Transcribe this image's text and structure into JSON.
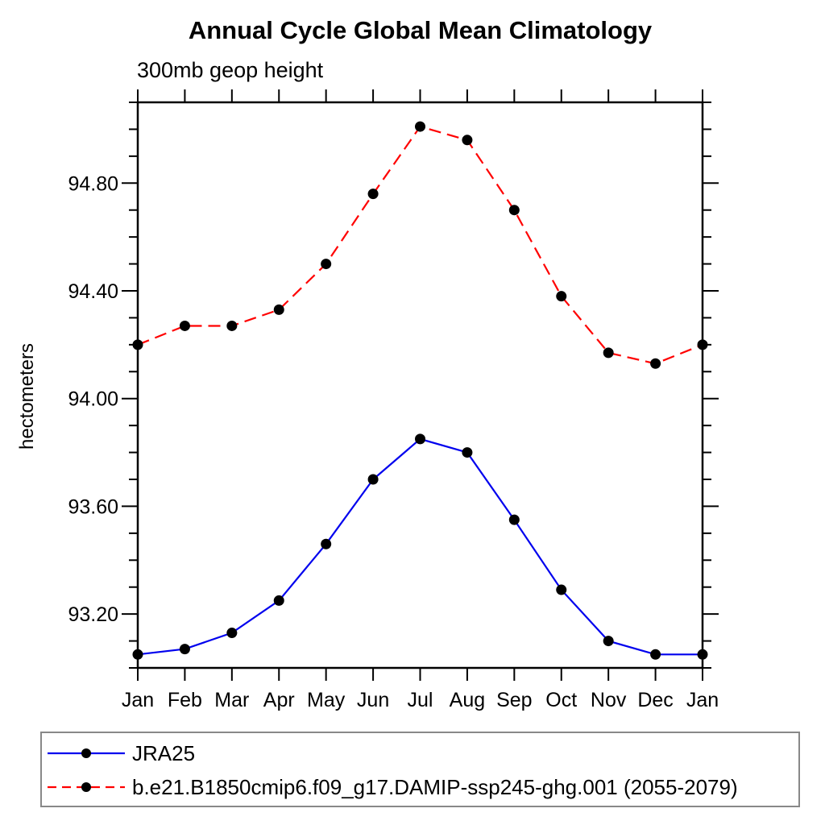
{
  "chart_data": {
    "type": "line",
    "title": "Annual Cycle Global Mean Climatology",
    "subtitle": "300mb geop height",
    "xlabel": "",
    "ylabel": "hectometers",
    "categories": [
      "Jan",
      "Feb",
      "Mar",
      "Apr",
      "May",
      "Jun",
      "Jul",
      "Aug",
      "Sep",
      "Oct",
      "Nov",
      "Dec",
      "Jan"
    ],
    "ylim": [
      93.0,
      95.1
    ],
    "ytick_minor_interval": 0.1,
    "yticks_major": [
      93.2,
      93.6,
      94.0,
      94.4,
      94.8
    ],
    "ytick_labels": [
      "93.20",
      "93.60",
      "94.00",
      "94.40",
      "94.80"
    ],
    "grid": false,
    "frame": "closed-box-with-outward-ticks",
    "legend_position": "below-plot-boxed",
    "series": [
      {
        "name": "JRA25",
        "line_color": "#0000ee",
        "line_style": "solid",
        "marker": "filled-circle",
        "marker_color": "#000000",
        "values": [
          93.05,
          93.07,
          93.13,
          93.25,
          93.46,
          93.7,
          93.85,
          93.8,
          93.55,
          93.29,
          93.1,
          93.05,
          93.05
        ]
      },
      {
        "name": "b.e21.B1850cmip6.f09_g17.DAMIP-ssp245-ghg.001 (2055-2079)",
        "line_color": "#ff0000",
        "line_style": "dashed",
        "marker": "filled-circle",
        "marker_color": "#000000",
        "values": [
          94.2,
          94.27,
          94.27,
          94.33,
          94.5,
          94.76,
          95.01,
          94.96,
          94.7,
          94.38,
          94.17,
          94.13,
          94.2
        ]
      }
    ],
    "colors": {
      "axis": "#000000",
      "text": "#000000",
      "legend_border": "#888888",
      "background": "#ffffff"
    }
  }
}
